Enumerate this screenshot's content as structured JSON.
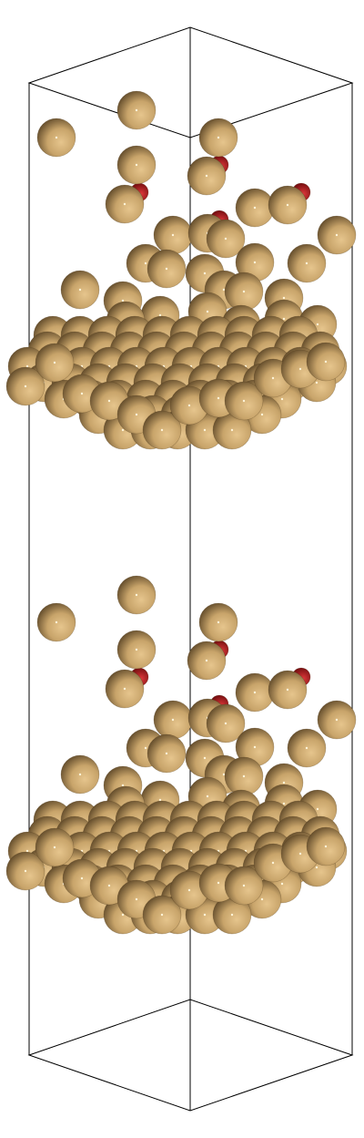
{
  "scene": {
    "background": "#ffffff",
    "cell_line_color": "#000000",
    "atom_colors": {
      "metal": "#c8a46a",
      "metal_dark": "#6b5330",
      "oxygen": "#c0191c",
      "carbon": "#555555"
    },
    "slabs": 2
  }
}
